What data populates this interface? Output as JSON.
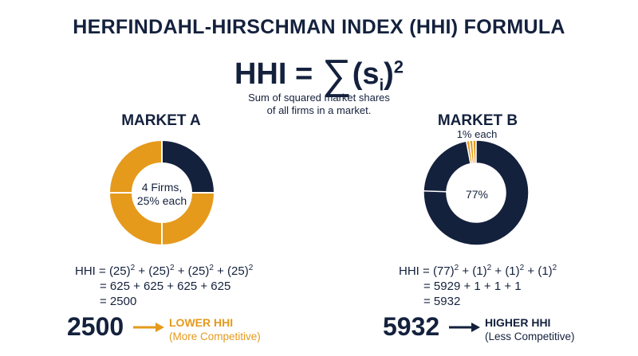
{
  "title": "HERFINDAHL-HIRSCHMAN INDEX (HHI) FORMULA",
  "formula": {
    "lhs": "HHI = ",
    "sigma": "∑",
    "open": "(s",
    "sub": "i",
    "close": ")",
    "sup": "2"
  },
  "description": {
    "line1": "Sum of squared market shares",
    "line2": "of all firms in a market."
  },
  "colors": {
    "navy": "#14213d",
    "orange": "#e59a1c"
  },
  "market_a": {
    "title": "MARKET A",
    "center_line1": "4 Firms,",
    "center_line2": "25% each",
    "shares": [
      25,
      25,
      25,
      25
    ],
    "share_colors": [
      "#14213d",
      "#e59a1c",
      "#e59a1c",
      "#e59a1c"
    ],
    "calc": {
      "line1": {
        "prefix": "HHI = ",
        "terms": [
          "(25)",
          "(25)",
          "(25)",
          "(25)"
        ],
        "exp": "2"
      },
      "line2": "= 625 + 625 + 625 + 625",
      "line3": "= 2500"
    },
    "result": {
      "value": "2500",
      "label": "LOWER HHI",
      "sublabel": "(More Competitive)"
    }
  },
  "market_b": {
    "title": "MARKET B",
    "note": "1% each",
    "center": "77%",
    "shares": [
      77,
      1,
      1,
      1
    ],
    "share_colors": [
      "#14213d",
      "#e59a1c",
      "#e59a1c",
      "#e59a1c"
    ],
    "calc": {
      "line1": {
        "prefix": "HHI = ",
        "terms": [
          "(77)",
          "(1)",
          "(1)",
          "(1)"
        ],
        "exp": "2"
      },
      "line2": "= 5929 + 1 + 1 + 1",
      "line3": "= 5932"
    },
    "result": {
      "value": "5932",
      "label": "HIGHER HHI",
      "sublabel": "(Less Competitive)"
    }
  }
}
